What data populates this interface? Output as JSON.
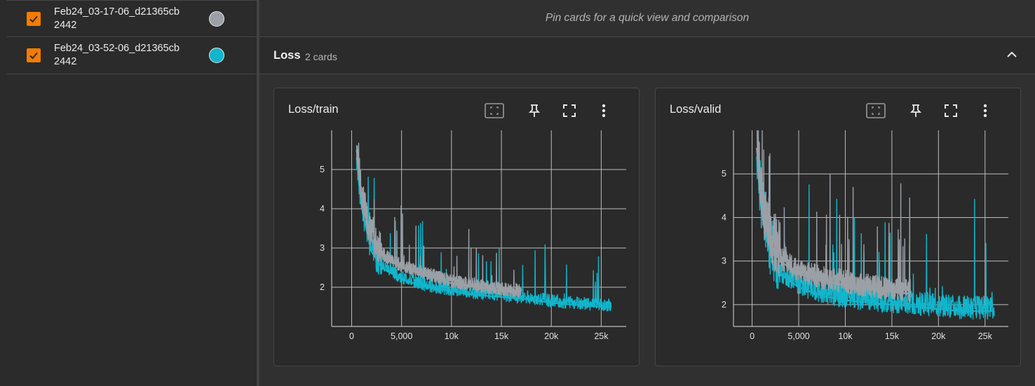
{
  "sidebar": {
    "runs": [
      {
        "name_line1": "Feb24_03-17-06_d21365cb",
        "name_line2": "2442",
        "color": "#9aa0a6",
        "checked": true
      },
      {
        "name_line1": "Feb24_03-52-06_d21365cb",
        "name_line2": "2442",
        "color": "#12b5cb",
        "checked": true
      }
    ]
  },
  "pinned": {
    "text": "Pin cards for a quick view and comparison"
  },
  "group": {
    "title": "Loss",
    "count": "2 cards"
  },
  "colors": {
    "accent": "#f57c00",
    "run1": "#9aa0a6",
    "run2": "#12b5cb"
  },
  "cards": [
    {
      "title": "Loss/train",
      "toolbar": [
        "fit-domain-icon",
        "pin-icon",
        "fullscreen-icon",
        "more-vert-icon"
      ],
      "chart_data": {
        "type": "line",
        "xlim": [
          -2000,
          27500
        ],
        "ylim": [
          1,
          6
        ],
        "x_ticks": [
          0,
          5000,
          10000,
          15000,
          20000,
          25000
        ],
        "x_tick_labels": [
          "0",
          "5,000",
          "10k",
          "15k",
          "20k",
          "25k"
        ],
        "y_ticks": [
          2,
          3,
          4,
          5
        ],
        "y_tick_labels": [
          "2",
          "3",
          "4",
          "5"
        ],
        "grid": true,
        "series": [
          {
            "color": "#9aa0a6",
            "x": [
              500,
              1000,
              2000,
              3000,
              5000,
              7500,
              10000,
              12500,
              15000,
              17000
            ],
            "y": [
              5.5,
              4.2,
              3.2,
              2.8,
              2.5,
              2.3,
              2.1,
              2.0,
              1.9,
              1.85
            ]
          },
          {
            "color": "#12b5cb",
            "x": [
              500,
              1000,
              2000,
              3000,
              5000,
              7500,
              10000,
              12500,
              15000,
              17500,
              20000,
              22500,
              25000,
              26000
            ],
            "y": [
              5.3,
              4.0,
              2.9,
              2.5,
              2.2,
              2.0,
              1.9,
              1.8,
              1.75,
              1.7,
              1.6,
              1.55,
              1.5,
              1.5
            ]
          }
        ]
      }
    },
    {
      "title": "Loss/valid",
      "toolbar": [
        "fit-domain-icon",
        "pin-icon",
        "fullscreen-icon",
        "more-vert-icon"
      ],
      "chart_data": {
        "type": "line",
        "xlim": [
          -2000,
          27500
        ],
        "ylim": [
          1.5,
          6
        ],
        "x_ticks": [
          0,
          5000,
          10000,
          15000,
          20000,
          25000
        ],
        "x_tick_labels": [
          "0",
          "5,000",
          "10k",
          "15k",
          "20k",
          "25k"
        ],
        "y_ticks": [
          2,
          3,
          4,
          5
        ],
        "y_tick_labels": [
          "2",
          "3",
          "4",
          "5"
        ],
        "grid": true,
        "series": [
          {
            "color": "#9aa0a6",
            "x": [
              500,
              1000,
              2000,
              3000,
              5000,
              7500,
              10000,
              12500,
              15000,
              17000
            ],
            "y": [
              5.6,
              4.3,
              3.4,
              3.0,
              2.7,
              2.55,
              2.45,
              2.35,
              2.3,
              2.25
            ]
          },
          {
            "color": "#12b5cb",
            "x": [
              500,
              1000,
              2000,
              3000,
              5000,
              7500,
              10000,
              12500,
              15000,
              17500,
              20000,
              22500,
              25000,
              26000
            ],
            "y": [
              5.4,
              4.1,
              3.1,
              2.7,
              2.4,
              2.2,
              2.1,
              2.05,
              2.0,
              1.95,
              1.9,
              1.85,
              1.85,
              1.85
            ]
          }
        ]
      }
    }
  ]
}
